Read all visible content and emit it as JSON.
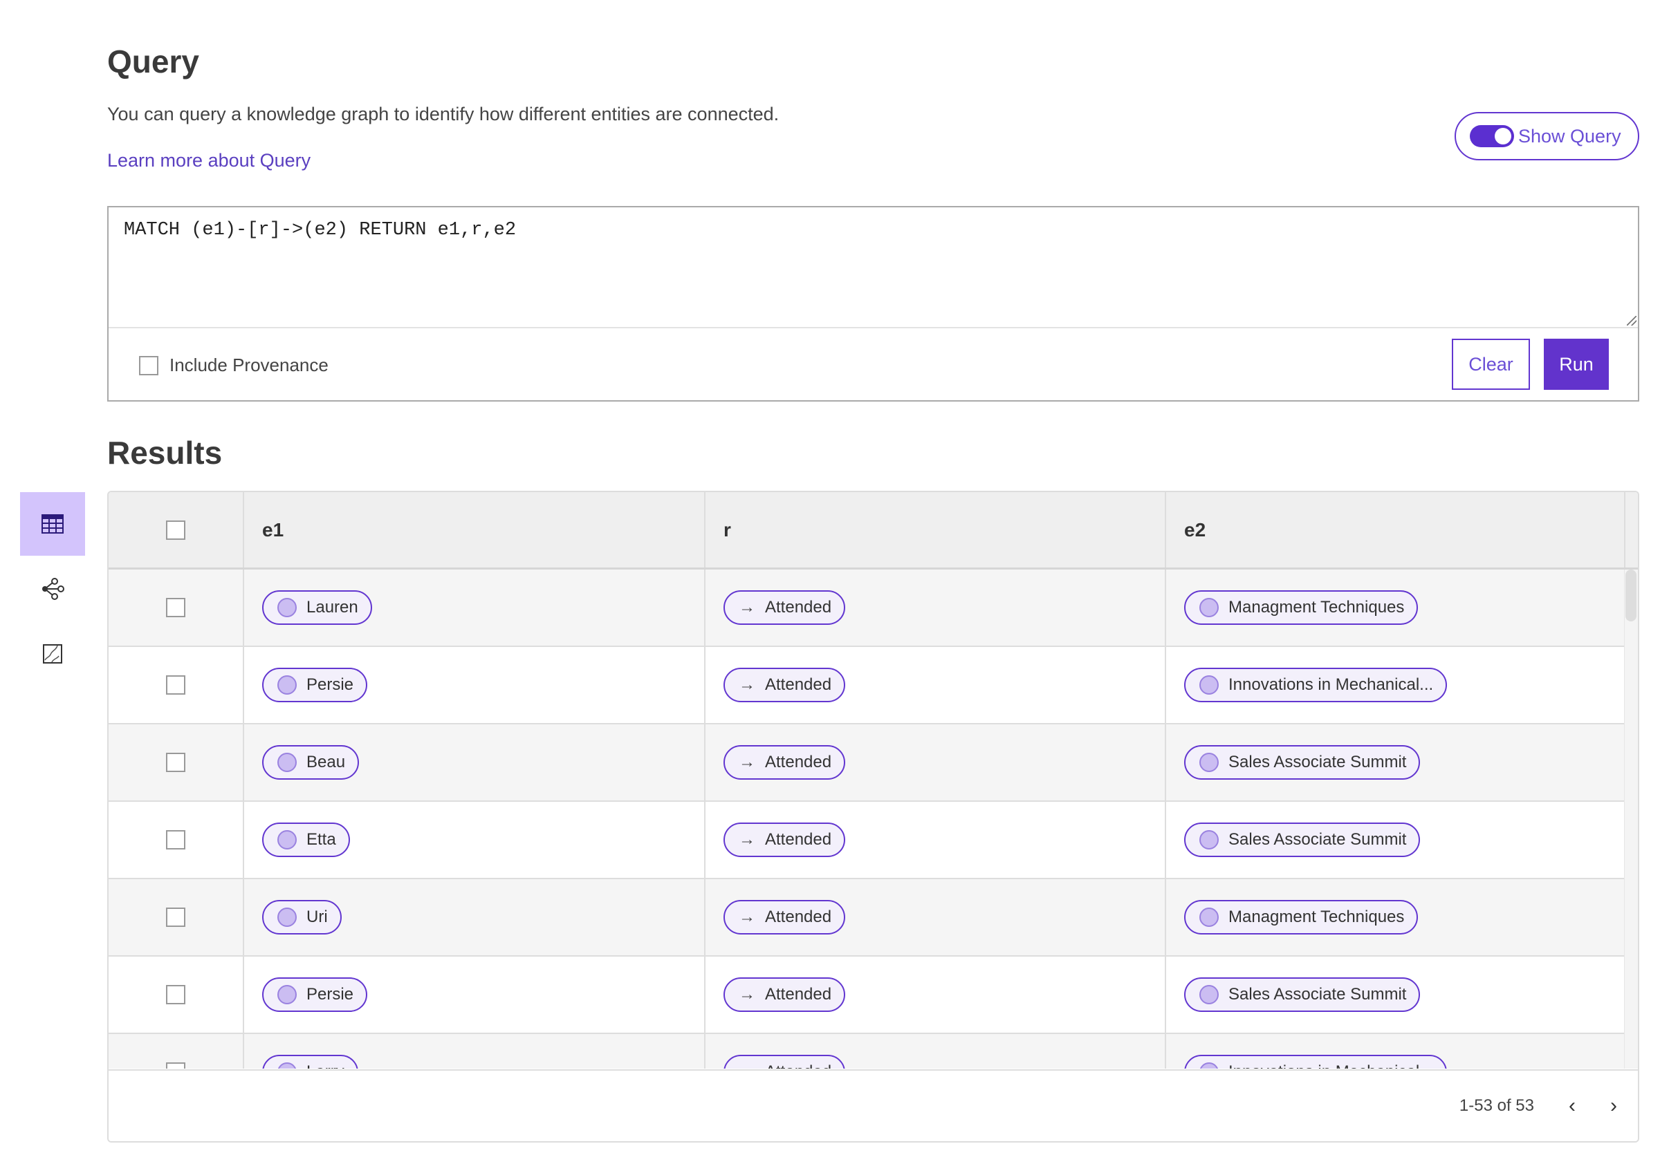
{
  "header": {
    "title": "Query",
    "description": "You can query a knowledge graph to identify how different entities are connected.",
    "learn_more": "Learn more about Query",
    "show_query_label": "Show Query",
    "show_query_on": true
  },
  "query": {
    "text": "MATCH (e1)-[r]->(e2) RETURN e1,r,e2",
    "include_provenance_label": "Include Provenance",
    "include_provenance_checked": false,
    "clear_label": "Clear",
    "run_label": "Run"
  },
  "results": {
    "title": "Results",
    "sidebar": [
      {
        "icon": "table-icon",
        "active": true
      },
      {
        "icon": "graph-icon",
        "active": false
      },
      {
        "icon": "map-icon",
        "active": false
      }
    ],
    "columns": [
      "e1",
      "r",
      "e2"
    ],
    "rows": [
      [
        "Lauren",
        "Attended",
        "Managment Techniques"
      ],
      [
        "Persie",
        "Attended",
        "Innovations in Mechanical..."
      ],
      [
        "Beau",
        "Attended",
        "Sales Associate Summit"
      ],
      [
        "Etta",
        "Attended",
        "Sales Associate Summit"
      ],
      [
        "Uri",
        "Attended",
        "Managment Techniques"
      ],
      [
        "Persie",
        "Attended",
        "Sales Associate Summit"
      ],
      [
        "Larry",
        "Attended",
        "Innovations in Mechanical..."
      ]
    ],
    "pagination": "1-53 of 53"
  },
  "colors": {
    "accent": "#6233cc",
    "active_sidebar": "#d3c4fc"
  }
}
